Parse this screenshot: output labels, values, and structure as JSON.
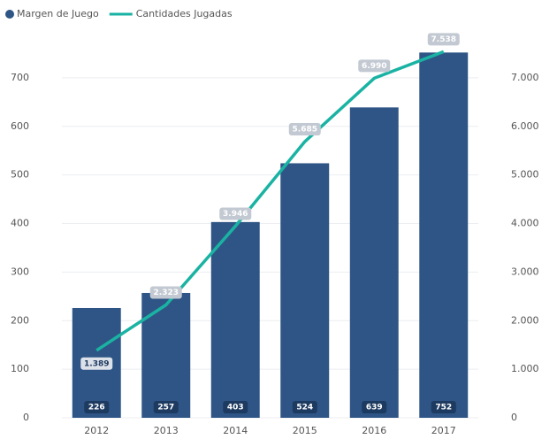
{
  "chart_data": {
    "type": "bar_line",
    "categories": [
      "2012",
      "2013",
      "2014",
      "2015",
      "2016",
      "2017"
    ],
    "series": [
      {
        "name": "Margen de Juego",
        "color": "#2e5585",
        "type": "bar",
        "values": [
          226,
          257,
          403,
          524,
          639,
          752
        ]
      },
      {
        "name": "Cantidades Jugadas",
        "color": "#1ab3a3",
        "type": "line",
        "axis": "y2",
        "values": [
          1389,
          2323,
          3946,
          5685,
          6990,
          7538
        ],
        "value_labels": [
          "1.389",
          "2.323",
          "3.946",
          "5.685",
          "6.990",
          "7.538"
        ]
      }
    ],
    "ylim": [
      0,
      800
    ],
    "yticks": [
      0,
      100,
      200,
      300,
      400,
      500,
      600,
      700
    ],
    "y2lim": [
      0,
      8000
    ],
    "y2ticks": [
      0,
      {
        "value": 1000,
        "label": "1.000"
      },
      {
        "value": 2000,
        "label": "2.000"
      },
      {
        "value": 3000,
        "label": "3.000"
      },
      {
        "value": 4000,
        "label": "4.000"
      },
      {
        "value": 5000,
        "label": "5.000"
      },
      {
        "value": 6000,
        "label": "6.000"
      },
      {
        "value": 7000,
        "label": "7.000"
      }
    ],
    "grid": true,
    "legend": "top-left"
  }
}
